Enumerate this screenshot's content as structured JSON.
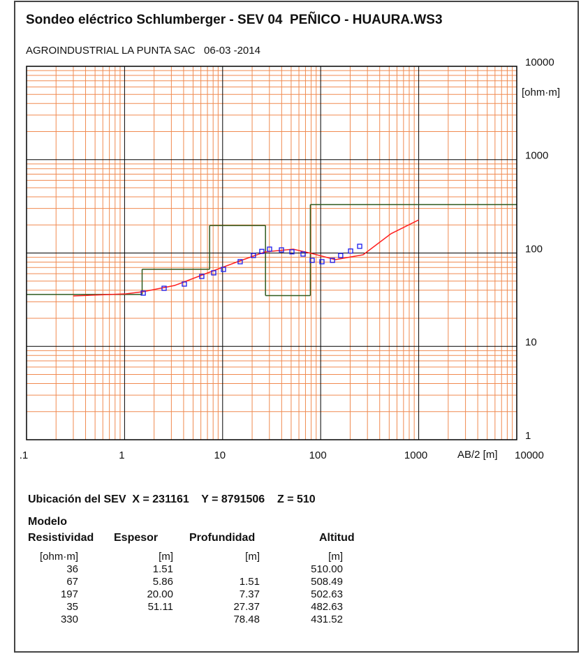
{
  "chart_data": {
    "type": "line",
    "title": "Sondeo eléctrico Schlumberger - SEV 04  PEÑICO - HUAURA.WS3",
    "subtitle": "AGROINDUSTRIAL LA PUNTA SAC   06-03 -2014",
    "x_label": "AB/2 [m]",
    "y_label": "[ohm·m]",
    "xscale": "log",
    "yscale": "log",
    "xlim": [
      0.1,
      10000
    ],
    "ylim": [
      1,
      10000
    ],
    "xticks": [
      {
        "value": 0.1,
        "label": ".1"
      },
      1,
      10,
      100,
      1000,
      10000
    ],
    "yticks": [
      1,
      10,
      100,
      1000,
      10000
    ],
    "grid": true,
    "grid_color": "#f08a50",
    "major_grid_color": "#000000",
    "model_color": "#2e5a1e",
    "series": [
      {
        "color": "#ff2020",
        "marker": "none",
        "x": [
          0.3,
          1.03,
          1.55,
          3.24,
          7.35,
          14.2,
          27.3,
          52.6,
          85.9,
          141,
          271,
          522,
          1000
        ],
        "values": [
          34.7,
          36.5,
          38.5,
          44.9,
          62.3,
          80.7,
          103,
          110,
          97.5,
          84.9,
          95.8,
          161,
          226
        ]
      },
      {
        "color": "#1a1aee",
        "marker": "square",
        "x": [
          1.55,
          2.53,
          4.07,
          6.13,
          8.11,
          10.2,
          15.1,
          20.6,
          25.1,
          30.1,
          39.8,
          50.9,
          66.1,
          81.9,
          103,
          132,
          160,
          202,
          250
        ],
        "values": [
          37.2,
          41.9,
          46.5,
          56.2,
          61.3,
          66.7,
          80.7,
          94.1,
          104,
          110,
          108,
          103,
          97.5,
          83.5,
          80.7,
          83.5,
          94,
          105,
          118
        ]
      }
    ]
  },
  "location": "Ubicación del SEV  X = 231161    Y = 8791506    Z = 510",
  "model": {
    "title": "Modelo",
    "headers": [
      "Resistividad",
      "Espesor",
      "Profundidad",
      "Altitud"
    ],
    "units": [
      "[ohm·m]",
      "[m]",
      "[m]",
      "[m]"
    ],
    "rows": [
      [
        "36",
        "1.51",
        null,
        "510.00"
      ],
      [
        "67",
        "5.86",
        "1.51",
        "508.49"
      ],
      [
        "197",
        "20.00",
        "7.37",
        "502.63"
      ],
      [
        "35",
        "51.11",
        "27.37",
        "482.63"
      ],
      [
        "330",
        null,
        "78.48",
        "431.52"
      ]
    ]
  }
}
